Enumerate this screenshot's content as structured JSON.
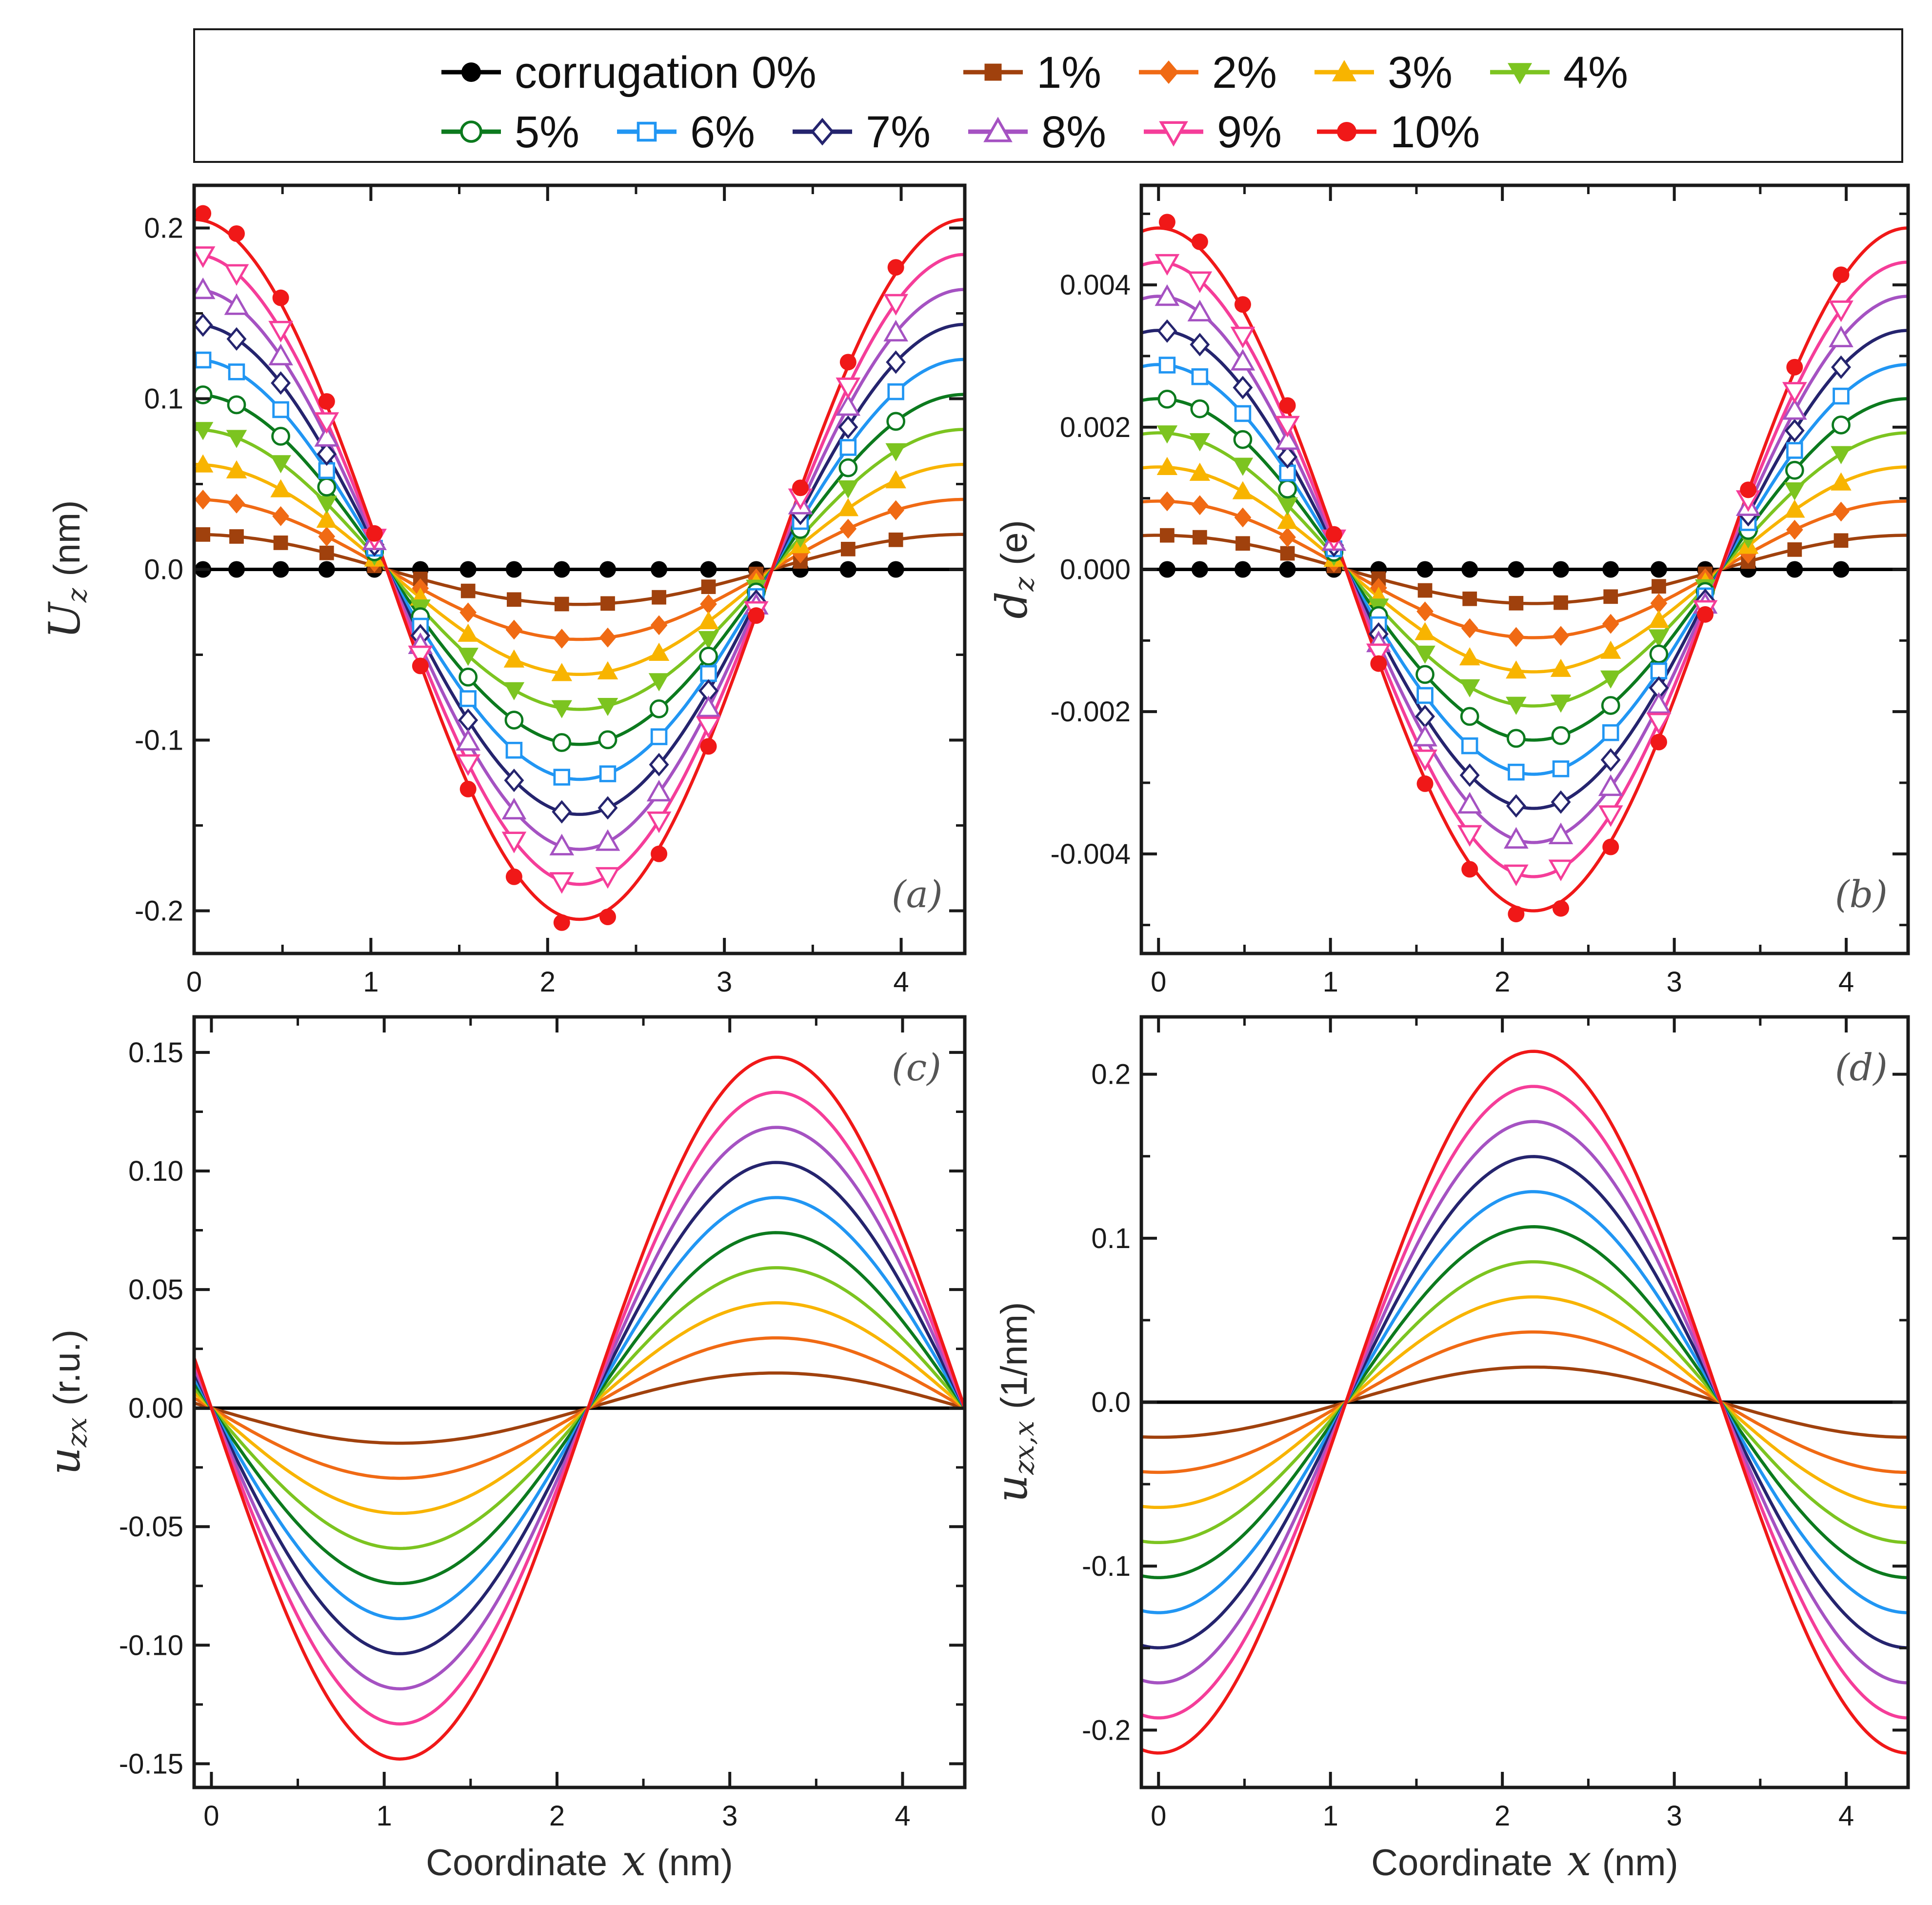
{
  "chart_data": {
    "type": "line",
    "legend": {
      "placement": "top",
      "entries": [
        {
          "label": "corrugation 0%",
          "color": "#000000",
          "marker": "circle"
        },
        {
          "label": "1%",
          "color": "#a0410d",
          "marker": "square"
        },
        {
          "label": "2%",
          "color": "#f06a14",
          "marker": "diamond"
        },
        {
          "label": "3%",
          "color": "#f8b400",
          "marker": "triangle-up"
        },
        {
          "label": "4%",
          "color": "#7cc420",
          "marker": "triangle-down"
        },
        {
          "label": "5%",
          "color": "#0c7a1e",
          "marker": "circle-open"
        },
        {
          "label": "6%",
          "color": "#2196f3",
          "marker": "square-open"
        },
        {
          "label": "7%",
          "color": "#25246e",
          "marker": "diamond-open"
        },
        {
          "label": "8%",
          "color": "#a552c2",
          "marker": "triangle-up-open"
        },
        {
          "label": "9%",
          "color": "#f53d99",
          "marker": "triangle-down-open"
        },
        {
          "label": "10%",
          "color": "#f01818",
          "marker": "circle"
        }
      ]
    },
    "corrugation_percent": [
      0,
      1,
      2,
      3,
      4,
      5,
      6,
      7,
      8,
      9,
      10
    ],
    "period_nm": 4.36,
    "panels": [
      {
        "id": "a",
        "tag": "(a)",
        "ylabel_symbol": "U",
        "ylabel_sub": "z",
        "ylabel_unit": "(nm)",
        "xlim": [
          0,
          4.36
        ],
        "ylim": [
          -0.225,
          0.225
        ],
        "xticks": [
          0,
          1,
          2,
          3,
          4
        ],
        "xtick_labels": [
          "0",
          "1",
          "2",
          "3",
          "4"
        ],
        "yticks": [
          -0.2,
          -0.1,
          0,
          0.1,
          0.2
        ],
        "ytick_labels": [
          "-0.2",
          "-0.1",
          "0.0",
          "0.1",
          "0.2"
        ],
        "curve_form": "cos",
        "amplitude_per_percent": 0.0205,
        "curve_peak_10pct": 0.205,
        "markers": true,
        "x_axis_title": false
      },
      {
        "id": "b",
        "tag": "(b)",
        "ylabel_symbol": "d",
        "ylabel_sub": "z",
        "ylabel_unit": "(e)",
        "xlim": [
          -0.1,
          4.36
        ],
        "ylim": [
          -0.0054,
          0.0054
        ],
        "xticks": [
          0,
          1,
          2,
          3,
          4
        ],
        "xtick_labels": [
          "0",
          "1",
          "2",
          "3",
          "4"
        ],
        "yticks": [
          -0.004,
          -0.002,
          0,
          0.002,
          0.004
        ],
        "ytick_labels": [
          "-0.004",
          "-0.002",
          "0.000",
          "0.002",
          "0.004"
        ],
        "curve_form": "cos",
        "amplitude_per_percent": 0.00048,
        "curve_peak_10pct": 0.0048,
        "markers": true,
        "x_axis_title": false
      },
      {
        "id": "c",
        "tag": "(c)",
        "ylabel_symbol": "u",
        "ylabel_sub": "zx",
        "ylabel_unit": "(r.u.)",
        "xlim": [
          -0.1,
          4.36
        ],
        "ylim": [
          -0.16,
          0.165
        ],
        "xticks": [
          0,
          1,
          2,
          3,
          4
        ],
        "xtick_labels": [
          "0",
          "1",
          "2",
          "3",
          "4"
        ],
        "yticks": [
          -0.15,
          -0.1,
          -0.05,
          0,
          0.05,
          0.1,
          0.15
        ],
        "ytick_labels": [
          "-0.15",
          "-0.10",
          "-0.05",
          "0.00",
          "0.05",
          "0.10",
          "0.15"
        ],
        "curve_form": "-sin",
        "amplitude_per_percent": 0.0148,
        "curve_peak_10pct": 0.148,
        "markers": false,
        "x_axis_title": true
      },
      {
        "id": "d",
        "tag": "(d)",
        "ylabel_symbol": "u",
        "ylabel_sub": "zx,x",
        "ylabel_unit": "(1/nm)",
        "xlim": [
          -0.1,
          4.36
        ],
        "ylim": [
          -0.235,
          0.235
        ],
        "xticks": [
          0,
          1,
          2,
          3,
          4
        ],
        "xtick_labels": [
          "0",
          "1",
          "2",
          "3",
          "4"
        ],
        "yticks": [
          -0.2,
          -0.1,
          0,
          0.1,
          0.2
        ],
        "ytick_labels": [
          "-0.2",
          "-0.1",
          "0.0",
          "0.1",
          "0.2"
        ],
        "curve_form": "-cos",
        "amplitude_per_percent": 0.0214,
        "curve_peak_10pct": 0.214,
        "markers": false,
        "x_axis_title": true
      }
    ],
    "xlabel_text": "Coordinate",
    "xlabel_symbol": "x",
    "xlabel_unit": "(nm)"
  }
}
